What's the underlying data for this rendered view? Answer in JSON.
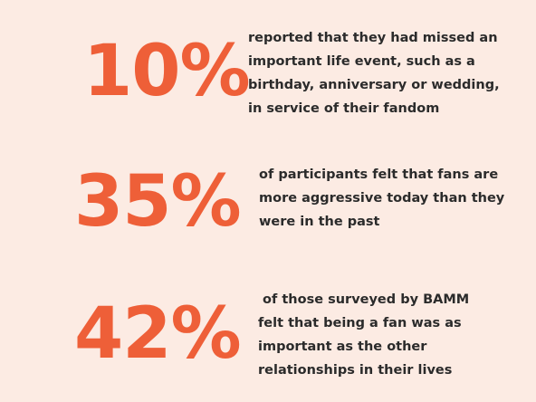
{
  "stats": [
    {
      "value": "10%",
      "lines": [
        "reported that they had missed an",
        "important life event, such as a",
        "birthday, anniversary or wedding,",
        "in service of their fandom"
      ]
    },
    {
      "value": "35%",
      "lines": [
        "of participants felt that fans are",
        "more aggressive today than they",
        "were in the past"
      ]
    },
    {
      "value": "42%",
      "lines": [
        " of those surveyed by BAMM",
        "felt that being a fan was as",
        "important as the other",
        "relationships in their lives"
      ]
    }
  ],
  "colors": {
    "background": "#fcebe3",
    "accent": "#ee5f38",
    "text": "#2b2b2b"
  }
}
